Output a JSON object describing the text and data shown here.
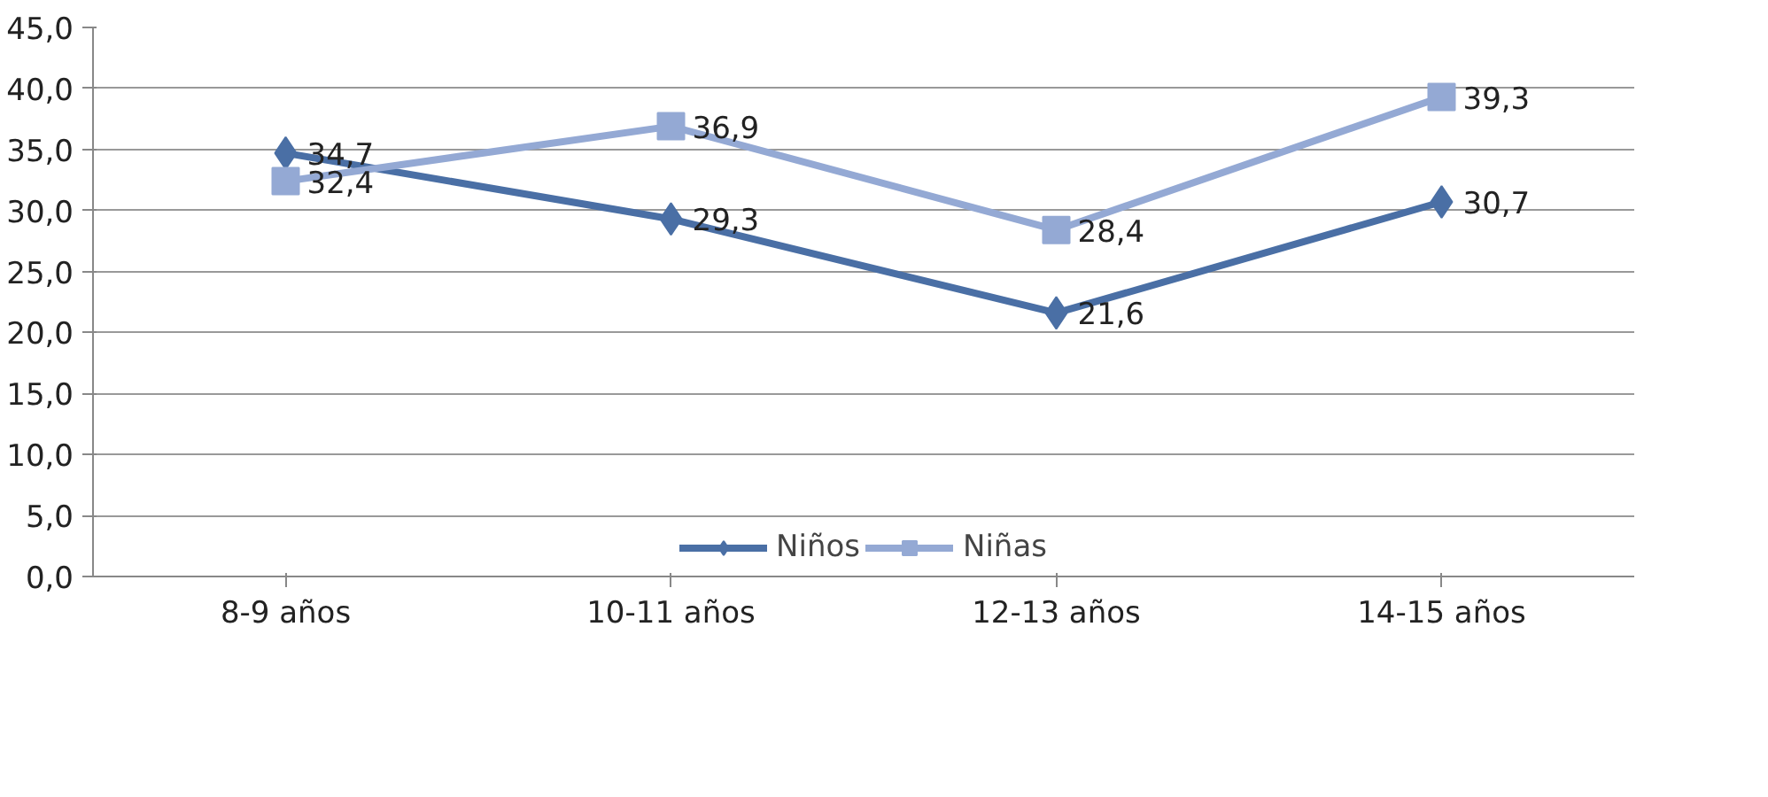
{
  "chart_data": {
    "type": "line",
    "categories": [
      "8-9 años",
      "10-11 años",
      "12-13 años",
      "14-15 años"
    ],
    "series": [
      {
        "name": "Niños",
        "color": "#4a6fa5",
        "marker": "diamond",
        "values": [
          34.7,
          29.3,
          21.6,
          30.7
        ],
        "value_labels": [
          "34,7",
          "29,3",
          "21,6",
          "30,7"
        ]
      },
      {
        "name": "Niñas",
        "color": "#94a9d4",
        "marker": "square",
        "values": [
          32.4,
          36.9,
          28.4,
          39.3
        ],
        "value_labels": [
          "32,4",
          "36,9",
          "28,4",
          "39,3"
        ]
      }
    ],
    "ylim": [
      0,
      45
    ],
    "yticks": [
      {
        "value": 0,
        "label": "0,0"
      },
      {
        "value": 5,
        "label": "5,0"
      },
      {
        "value": 10,
        "label": "10,0"
      },
      {
        "value": 15,
        "label": "15,0"
      },
      {
        "value": 20,
        "label": "20,0"
      },
      {
        "value": 25,
        "label": "25,0"
      },
      {
        "value": 30,
        "label": "30,0"
      },
      {
        "value": 35,
        "label": "35,0"
      },
      {
        "value": 40,
        "label": "40,0"
      },
      {
        "value": 45,
        "label": "45,0"
      }
    ],
    "grid": "y",
    "legend": "bottom",
    "line_style": "solid"
  }
}
